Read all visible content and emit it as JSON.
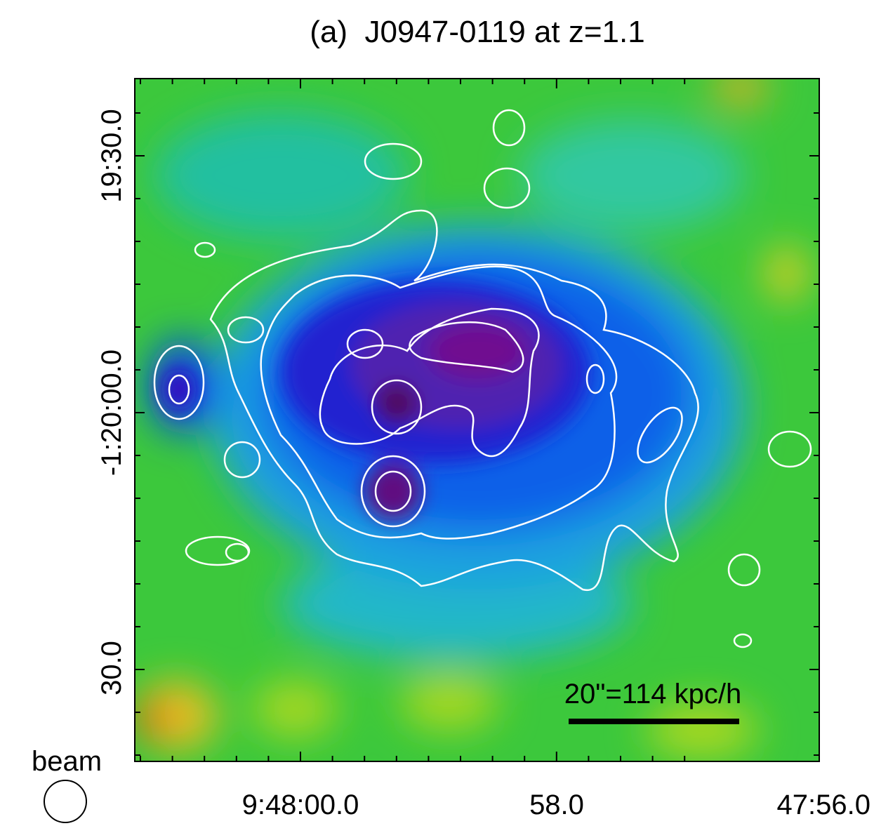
{
  "title": "(a)  J0947-0119 at z=1.1",
  "y_tick_labels": [
    "19:30.0",
    "-1:20:00.0",
    "30.0"
  ],
  "x_tick_labels": [
    "9:48:00.0",
    "58.0",
    "47:56.0"
  ],
  "scale_bar_label": "20\"=114 kpc/h",
  "beam_label": "beam"
}
